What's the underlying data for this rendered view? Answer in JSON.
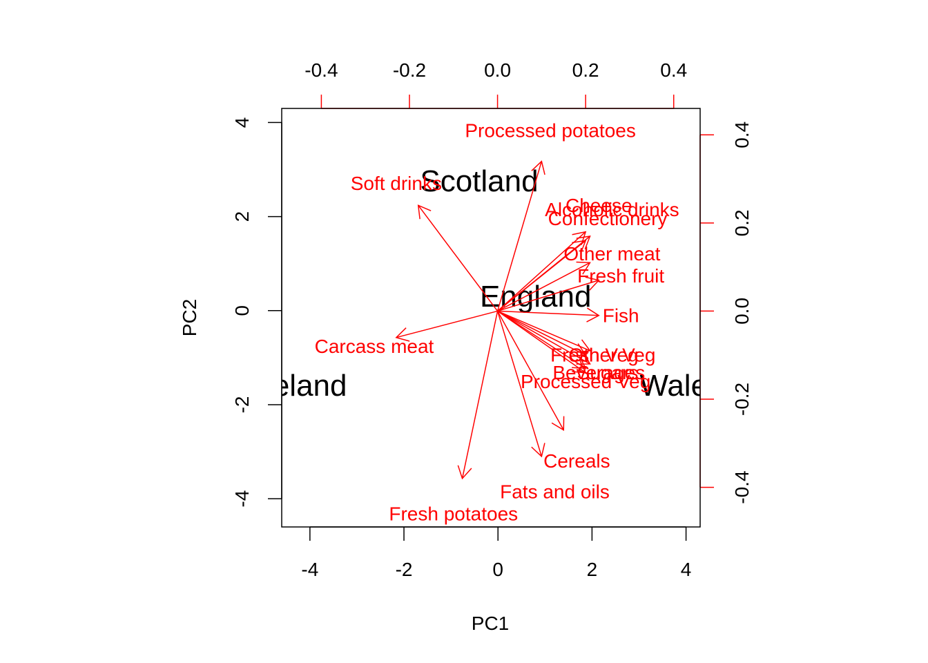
{
  "chart_data": {
    "type": "scatter",
    "title": "",
    "xlabel": "PC1",
    "ylabel": "PC2",
    "xlim": [
      -4.6,
      4.3
    ],
    "ylim": [
      -4.6,
      4.3
    ],
    "x_ticks": [
      -4,
      -2,
      0,
      2,
      4
    ],
    "y_ticks": [
      -4,
      -2,
      0,
      2,
      4
    ],
    "x_tick_labels": [
      "-4",
      "-2",
      "0",
      "2",
      "4"
    ],
    "y_tick_labels": [
      "-4",
      "-2",
      "0",
      "2",
      "4"
    ],
    "top_axis": {
      "lim": [
        -0.49,
        0.46
      ],
      "ticks": [
        -0.4,
        -0.2,
        0.0,
        0.2,
        0.4
      ],
      "tick_labels": [
        "-0.4",
        "-0.2",
        "0.0",
        "0.2",
        "0.4"
      ]
    },
    "right_axis": {
      "lim": [
        -0.49,
        0.46
      ],
      "ticks": [
        -0.4,
        -0.2,
        0.0,
        0.2,
        0.4
      ],
      "tick_labels": [
        "-0.4",
        "-0.2",
        "0.0",
        "0.2",
        "0.4"
      ]
    },
    "colors": {
      "scores": "#000000",
      "loadings": "#ff0000"
    },
    "scores": [
      {
        "label": "England",
        "x": 0.8,
        "y": 0.3
      },
      {
        "label": "Scotland",
        "x": -0.4,
        "y": 2.75
      },
      {
        "label": "Ireland",
        "x": -4.2,
        "y": -1.6
      },
      {
        "label": "Wales",
        "x": 3.9,
        "y": -1.6
      }
    ],
    "loadings": [
      {
        "label": "Processed potatoes",
        "x": 0.1,
        "y": 0.34,
        "label_x": 0.12,
        "label_y": 0.41
      },
      {
        "label": "Soft drinks",
        "x": -0.18,
        "y": 0.24,
        "label_x": -0.23,
        "label_y": 0.29
      },
      {
        "label": "Cheese",
        "x": 0.2,
        "y": 0.18,
        "label_x": 0.23,
        "label_y": 0.24
      },
      {
        "label": "Alcoholic drinks",
        "x": 0.21,
        "y": 0.17,
        "label_x": 0.26,
        "label_y": 0.23
      },
      {
        "label": "Confectionery",
        "x": 0.2,
        "y": 0.16,
        "label_x": 0.25,
        "label_y": 0.21
      },
      {
        "label": "Other meat",
        "x": 0.21,
        "y": 0.11,
        "label_x": 0.26,
        "label_y": 0.13
      },
      {
        "label": "Fresh fruit",
        "x": 0.23,
        "y": 0.07,
        "label_x": 0.28,
        "label_y": 0.08
      },
      {
        "label": "Fish",
        "x": 0.23,
        "y": -0.01,
        "label_x": 0.28,
        "label_y": -0.01
      },
      {
        "label": "Carcass meat",
        "x": -0.23,
        "y": -0.06,
        "label_x": -0.28,
        "label_y": -0.08
      },
      {
        "label": "Other Veg",
        "x": 0.21,
        "y": -0.09,
        "label_x": 0.26,
        "label_y": -0.1
      },
      {
        "label": "Fresh Veg",
        "x": 0.2,
        "y": -0.1,
        "label_x": 0.22,
        "label_y": -0.1
      },
      {
        "label": "Sugars",
        "x": 0.21,
        "y": -0.12,
        "label_x": 0.25,
        "label_y": -0.14
      },
      {
        "label": "Beverages",
        "x": 0.2,
        "y": -0.13,
        "label_x": 0.23,
        "label_y": -0.14
      },
      {
        "label": "Processed Veg",
        "x": 0.2,
        "y": -0.14,
        "label_x": 0.2,
        "label_y": -0.16
      },
      {
        "label": "Cereals",
        "x": 0.15,
        "y": -0.27,
        "label_x": 0.18,
        "label_y": -0.34
      },
      {
        "label": "Fats and oils",
        "x": 0.1,
        "y": -0.33,
        "label_x": 0.13,
        "label_y": -0.41
      },
      {
        "label": "Fresh potatoes",
        "x": -0.08,
        "y": -0.38,
        "label_x": -0.1,
        "label_y": -0.46
      }
    ]
  }
}
